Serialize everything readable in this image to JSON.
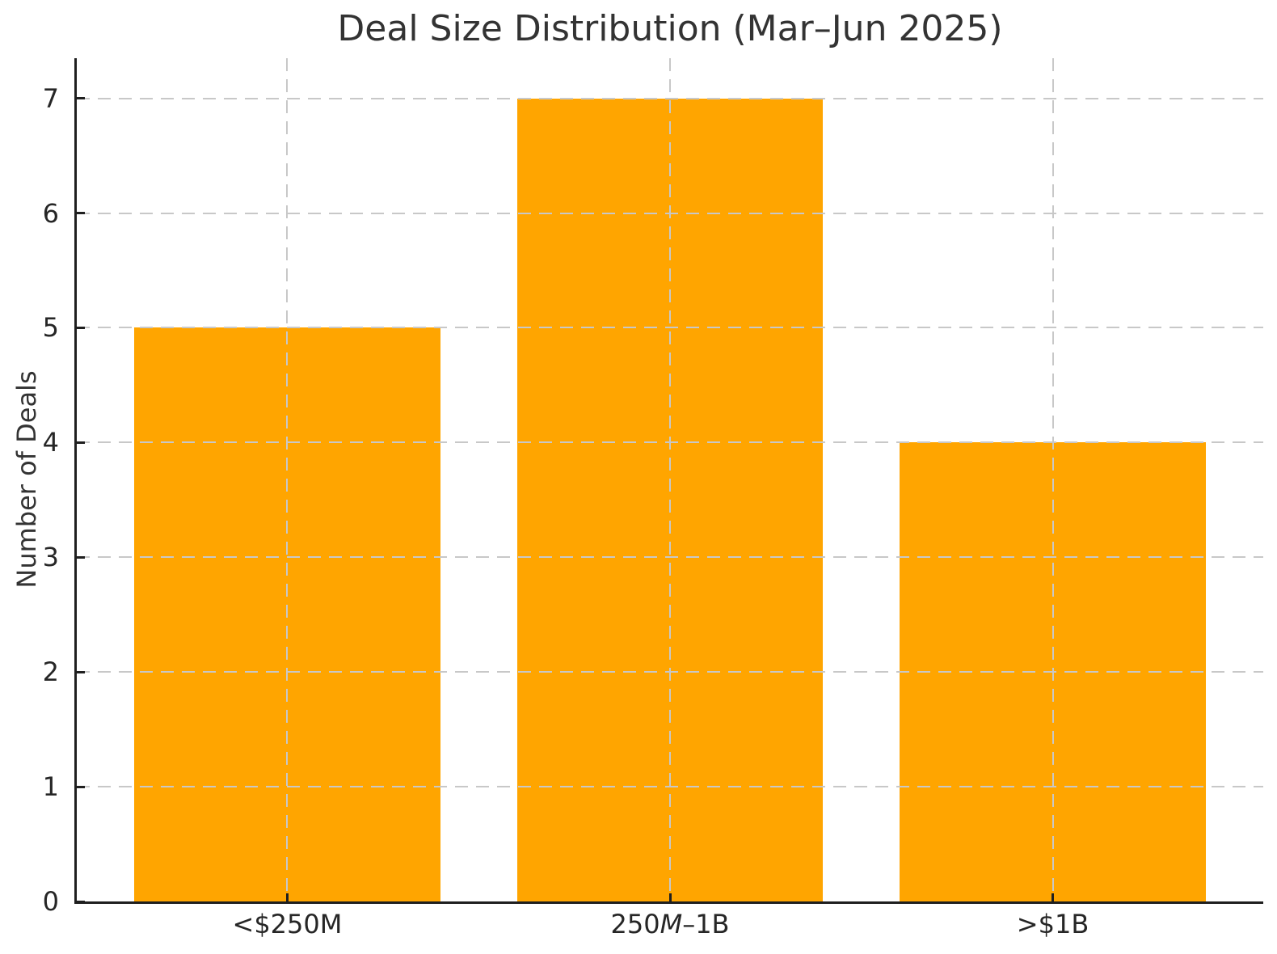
{
  "chart_data": {
    "type": "bar",
    "title": "Deal Size Distribution (Mar–Jun 2025)",
    "xlabel": "",
    "ylabel": "Number of Deals",
    "categories": [
      "<$250M",
      "250M–1B",
      ">$1B"
    ],
    "categories_rich": [
      [
        {
          "t": "<$250M"
        }
      ],
      [
        {
          "t": "250"
        },
        {
          "t": "M",
          "i": true
        },
        {
          "t": "–1B"
        }
      ],
      [
        {
          "t": ">$1B"
        }
      ]
    ],
    "values": [
      5,
      7,
      4
    ],
    "yticks": [
      0,
      1,
      2,
      3,
      4,
      5,
      6,
      7
    ],
    "ylim": [
      0,
      7.35
    ],
    "xlim": [
      -0.55,
      2.55
    ],
    "bar_width": 0.8,
    "grid": true,
    "grid_style": "dashed",
    "legend": "none",
    "colors": {
      "bar": "#FFA500",
      "grid": "#c8c8c8",
      "axis": "#1f1f1f",
      "text": "#333333",
      "background": "#ffffff"
    }
  }
}
